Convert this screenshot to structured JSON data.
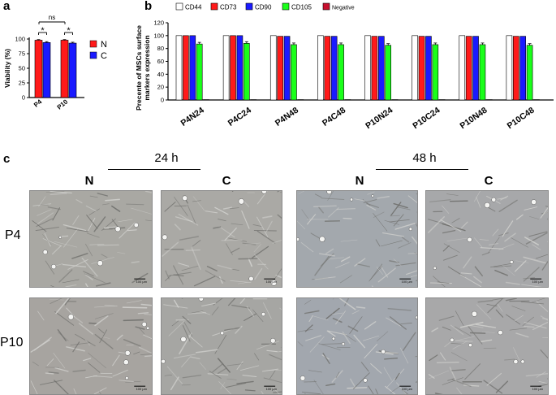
{
  "panels": {
    "a": {
      "letter": "a"
    },
    "b": {
      "letter": "b"
    },
    "c": {
      "letter": "c"
    }
  },
  "chart_data": [
    {
      "type": "bar",
      "panel": "a",
      "categories": [
        "P4",
        "P10"
      ],
      "series": [
        {
          "name": "N",
          "color": "#ff1a1a",
          "values": [
            98,
            98
          ],
          "errors": [
            1,
            1
          ]
        },
        {
          "name": "C",
          "color": "#1a1aff",
          "values": [
            94,
            93
          ],
          "errors": [
            1.5,
            1.5
          ]
        }
      ],
      "ylabel": "Viability (%)",
      "ylim": [
        0,
        100
      ],
      "yticks": [
        0,
        25,
        50,
        75,
        100
      ],
      "annotations": [
        {
          "text": "*",
          "between": [
            "P4-N",
            "P4-C"
          ]
        },
        {
          "text": "*",
          "between": [
            "P10-N",
            "P10-C"
          ]
        },
        {
          "text": "ns",
          "between": [
            "P4",
            "P10"
          ]
        }
      ],
      "legend": {
        "placement": "right"
      }
    },
    {
      "type": "bar",
      "panel": "b",
      "categories": [
        "P4N24",
        "P4C24",
        "P4N48",
        "P4C48",
        "P10N24",
        "P10C24",
        "P10N48",
        "P10C48"
      ],
      "series": [
        {
          "name": "CD44",
          "color": "#ffffff",
          "values": [
            100,
            100,
            100,
            100,
            100,
            100,
            100,
            100
          ]
        },
        {
          "name": "CD73",
          "color": "#ff1a1a",
          "values": [
            100,
            100,
            99,
            99,
            99,
            99,
            99,
            99
          ]
        },
        {
          "name": "CD90",
          "color": "#1a1aff",
          "values": [
            100,
            100,
            99,
            99,
            99,
            99,
            99,
            99
          ]
        },
        {
          "name": "CD105",
          "color": "#1aff1a",
          "values": [
            87,
            88,
            86,
            86,
            85,
            86,
            86,
            85
          ]
        },
        {
          "name": "Negative",
          "color": "#c8102e",
          "values": [
            0.5,
            0.5,
            0.5,
            0.5,
            0.5,
            0.5,
            0.5,
            0.5
          ]
        }
      ],
      "ylabel": "Precente of MSCs surface markers expression",
      "ylim": [
        0,
        120
      ],
      "yticks": [
        0,
        20,
        40,
        60,
        80,
        100,
        120
      ],
      "legend": {
        "placement": "top"
      }
    }
  ],
  "micrographs": {
    "time_labels": [
      "24 h",
      "48 h"
    ],
    "column_headers": [
      "N",
      "C",
      "N",
      "C"
    ],
    "row_labels": [
      "P4",
      "P10"
    ],
    "scale_bar": "100 µm"
  }
}
